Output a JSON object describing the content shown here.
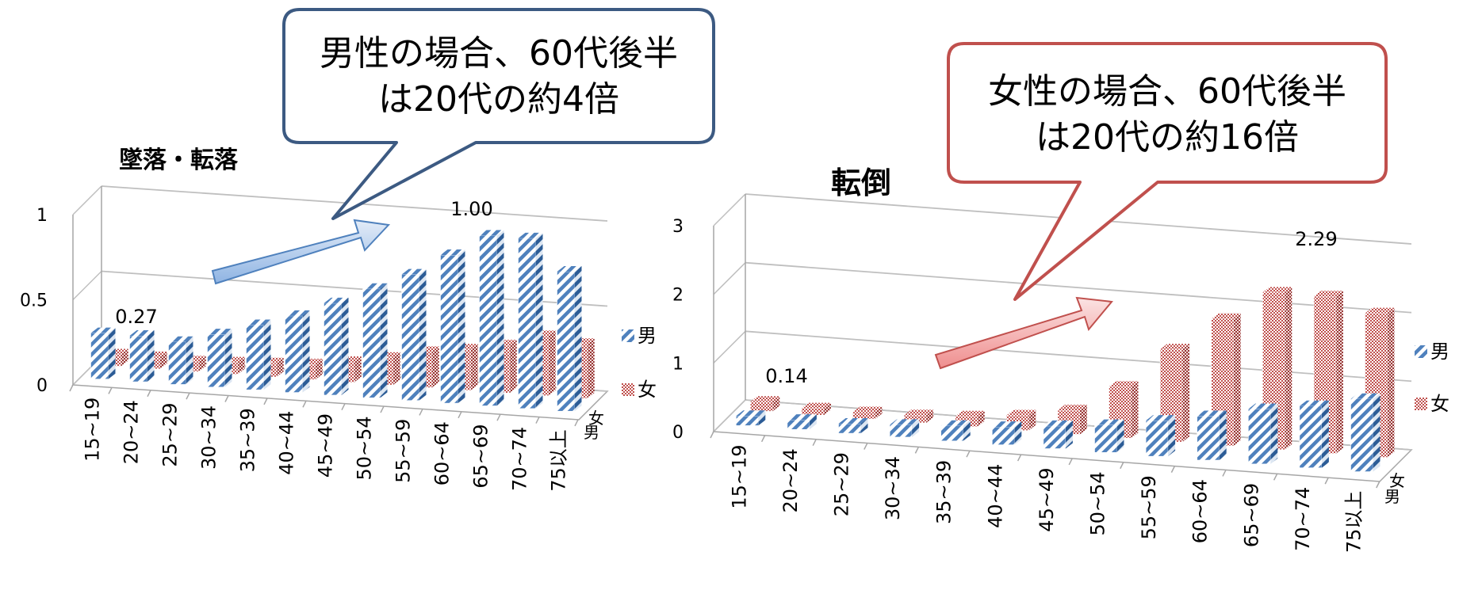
{
  "callouts": {
    "left": {
      "line1": "男性の場合、60代後半",
      "line2": "は20代の約4倍",
      "color": "#3c5a82"
    },
    "right": {
      "line1": "女性の場合、60代後半",
      "line2": "は20代の約16倍",
      "color": "#c0504d"
    }
  },
  "colors": {
    "male": "#4f81bd",
    "female": "#c0504d",
    "axis": "#a6a6a6",
    "grid": "#bfbfbf"
  },
  "chart_data": [
    {
      "type": "bar",
      "title": "墜落・転落",
      "categories": [
        "15~19",
        "20~24",
        "25~29",
        "30~34",
        "35~39",
        "40~44",
        "45~49",
        "50~54",
        "55~59",
        "60~64",
        "65~69",
        "70~74",
        "75以上"
      ],
      "series": [
        {
          "name": "男",
          "values": [
            0.27,
            0.27,
            0.25,
            0.31,
            0.38,
            0.45,
            0.54,
            0.64,
            0.74,
            0.87,
            1.0,
            1.0,
            0.82
          ]
        },
        {
          "name": "女",
          "values": [
            0.07,
            0.07,
            0.06,
            0.07,
            0.08,
            0.09,
            0.12,
            0.16,
            0.21,
            0.24,
            0.28,
            0.35,
            0.32
          ]
        }
      ],
      "ylim": [
        0,
        1
      ],
      "yticks": [
        "0",
        "0.5",
        "1"
      ],
      "annotations": [
        "0.27",
        "1.00"
      ],
      "legend_position": "right",
      "depth_labels": [
        "女",
        "男"
      ]
    },
    {
      "type": "bar",
      "title": "転倒",
      "categories": [
        "15~19",
        "20~24",
        "25~29",
        "30~34",
        "35~39",
        "40~44",
        "45~49",
        "50~54",
        "55~59",
        "60~64",
        "65~69",
        "70~74",
        "75以上"
      ],
      "series": [
        {
          "name": "男",
          "values": [
            0.14,
            0.14,
            0.14,
            0.18,
            0.22,
            0.26,
            0.33,
            0.4,
            0.52,
            0.64,
            0.8,
            0.9,
            1.06
          ]
        },
        {
          "name": "女",
          "values": [
            0.14,
            0.1,
            0.1,
            0.11,
            0.15,
            0.22,
            0.35,
            0.75,
            1.35,
            1.85,
            2.29,
            2.29,
            2.1
          ]
        }
      ],
      "ylim": [
        0,
        3
      ],
      "yticks": [
        "0",
        "1",
        "2",
        "3"
      ],
      "annotations": [
        "0.14",
        "2.29"
      ],
      "legend_position": "right",
      "depth_labels": [
        "女",
        "男"
      ]
    }
  ]
}
